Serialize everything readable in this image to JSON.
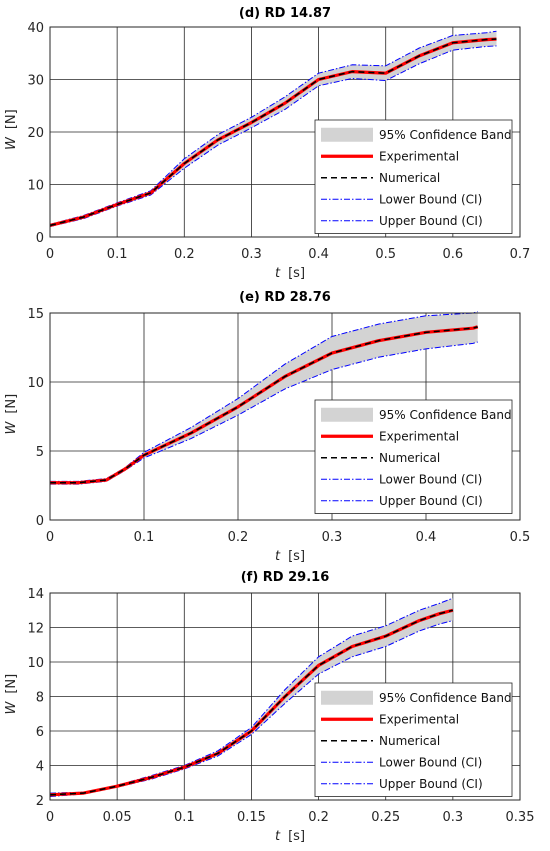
{
  "legend_labels": [
    "95% Confidence Band",
    "Experimental",
    "Numerical",
    "Lower Bound (CI)",
    "Upper Bound (CI)"
  ],
  "colors": {
    "band": "#d3d3d3",
    "experimental": "#ff0000",
    "numerical": "#000000",
    "bounds": "#0000ff",
    "grid": "#262626"
  },
  "chart_data": [
    {
      "type": "line",
      "title": "(d) RD 14.87",
      "xlabel": "t",
      "xunit": "[s]",
      "ylabel": "W",
      "yunit": "[N]",
      "xlim": [
        0,
        0.7
      ],
      "ylim": [
        0,
        40
      ],
      "xticks": [
        0,
        0.1,
        0.2,
        0.3,
        0.4,
        0.5,
        0.6,
        0.7
      ],
      "xtick_labels": [
        "0",
        "0.1",
        "0.2",
        "0.3",
        "0.4",
        "0.5",
        "0.6",
        "0.7"
      ],
      "yticks": [
        0,
        10,
        20,
        30,
        40
      ],
      "ytick_labels": [
        "0",
        "10",
        "20",
        "30",
        "40"
      ],
      "grid": true,
      "legend_position": "lower-right",
      "x": [
        0,
        0.05,
        0.1,
        0.15,
        0.2,
        0.25,
        0.3,
        0.35,
        0.4,
        0.45,
        0.5,
        0.55,
        0.6,
        0.65,
        0.665
      ],
      "series": [
        {
          "name": "Experimental",
          "values": [
            2.2,
            3.8,
            6.2,
            8.4,
            14.0,
            18.5,
            21.8,
            25.5,
            30.0,
            31.5,
            31.2,
            34.5,
            37.0,
            37.6,
            37.7
          ]
        },
        {
          "name": "Numerical",
          "values": [
            2.2,
            3.8,
            6.2,
            8.4,
            14.0,
            18.5,
            21.8,
            25.5,
            30.0,
            31.5,
            31.2,
            34.5,
            37.0,
            37.6,
            37.7
          ]
        },
        {
          "name": "Lower Bound (CI)",
          "values": [
            2.0,
            3.5,
            5.9,
            8.0,
            13.1,
            17.5,
            20.8,
            24.3,
            28.8,
            30.2,
            29.8,
            33.0,
            35.6,
            36.3,
            36.4
          ]
        },
        {
          "name": "Upper Bound (CI)",
          "values": [
            2.4,
            4.1,
            6.5,
            8.8,
            14.9,
            19.5,
            22.8,
            26.7,
            31.2,
            32.8,
            32.6,
            36.0,
            38.4,
            38.9,
            39.2
          ]
        }
      ]
    },
    {
      "type": "line",
      "title": "(e) RD 28.76",
      "xlabel": "t",
      "xunit": "[s]",
      "ylabel": "W",
      "yunit": "[N]",
      "xlim": [
        0,
        0.5
      ],
      "ylim": [
        0,
        15
      ],
      "xticks": [
        0,
        0.1,
        0.2,
        0.3,
        0.4,
        0.5
      ],
      "xtick_labels": [
        "0",
        "0.1",
        "0.2",
        "0.3",
        "0.4",
        "0.5"
      ],
      "yticks": [
        0,
        5,
        10,
        15
      ],
      "ytick_labels": [
        "0",
        "5",
        "10",
        "15"
      ],
      "grid": true,
      "legend_position": "lower-right",
      "x": [
        0,
        0.03,
        0.06,
        0.08,
        0.1,
        0.15,
        0.2,
        0.25,
        0.3,
        0.35,
        0.4,
        0.45,
        0.455
      ],
      "series": [
        {
          "name": "Experimental",
          "values": [
            2.7,
            2.7,
            2.9,
            3.7,
            4.7,
            6.3,
            8.2,
            10.4,
            12.1,
            13.0,
            13.6,
            13.9,
            14.0
          ]
        },
        {
          "name": "Numerical",
          "values": [
            2.7,
            2.7,
            2.9,
            3.7,
            4.7,
            6.3,
            8.2,
            10.4,
            12.1,
            13.0,
            13.6,
            13.9,
            14.0
          ]
        },
        {
          "name": "Lower Bound (CI)",
          "values": [
            2.6,
            2.6,
            2.8,
            3.6,
            4.5,
            5.9,
            7.6,
            9.5,
            10.9,
            11.8,
            12.4,
            12.8,
            12.9
          ]
        },
        {
          "name": "Upper Bound (CI)",
          "values": [
            2.8,
            2.8,
            3.0,
            3.8,
            4.9,
            6.7,
            8.8,
            11.3,
            13.3,
            14.2,
            14.8,
            15.0,
            15.1
          ]
        }
      ]
    },
    {
      "type": "line",
      "title": "(f) RD 29.16",
      "xlabel": "t",
      "xunit": "[s]",
      "ylabel": "W",
      "yunit": "[N]",
      "xlim": [
        0,
        0.35
      ],
      "ylim": [
        2,
        14
      ],
      "xticks": [
        0,
        0.05,
        0.1,
        0.15,
        0.2,
        0.25,
        0.3,
        0.35
      ],
      "xtick_labels": [
        "0",
        "0.05",
        "0.1",
        "0.15",
        "0.2",
        "0.25",
        "0.3",
        "0.35"
      ],
      "yticks": [
        2,
        4,
        6,
        8,
        10,
        12,
        14
      ],
      "ytick_labels": [
        "2",
        "4",
        "6",
        "8",
        "10",
        "12",
        "14"
      ],
      "grid": true,
      "legend_position": "lower-right",
      "x": [
        0,
        0.025,
        0.05,
        0.075,
        0.1,
        0.125,
        0.15,
        0.175,
        0.2,
        0.225,
        0.25,
        0.275,
        0.29,
        0.3
      ],
      "series": [
        {
          "name": "Experimental",
          "values": [
            2.3,
            2.4,
            2.8,
            3.3,
            3.9,
            4.7,
            6.0,
            8.0,
            9.8,
            10.9,
            11.5,
            12.4,
            12.8,
            13.0
          ]
        },
        {
          "name": "Numerical",
          "values": [
            2.3,
            2.4,
            2.8,
            3.3,
            3.9,
            4.7,
            6.0,
            8.0,
            9.8,
            10.9,
            11.5,
            12.4,
            12.8,
            13.0
          ]
        },
        {
          "name": "Lower Bound (CI)",
          "values": [
            2.2,
            2.35,
            2.75,
            3.2,
            3.8,
            4.55,
            5.8,
            7.6,
            9.3,
            10.3,
            10.9,
            11.8,
            12.2,
            12.4
          ]
        },
        {
          "name": "Upper Bound (CI)",
          "values": [
            2.4,
            2.45,
            2.85,
            3.4,
            4.0,
            4.85,
            6.2,
            8.4,
            10.3,
            11.5,
            12.1,
            13.0,
            13.4,
            13.7
          ]
        }
      ]
    }
  ]
}
